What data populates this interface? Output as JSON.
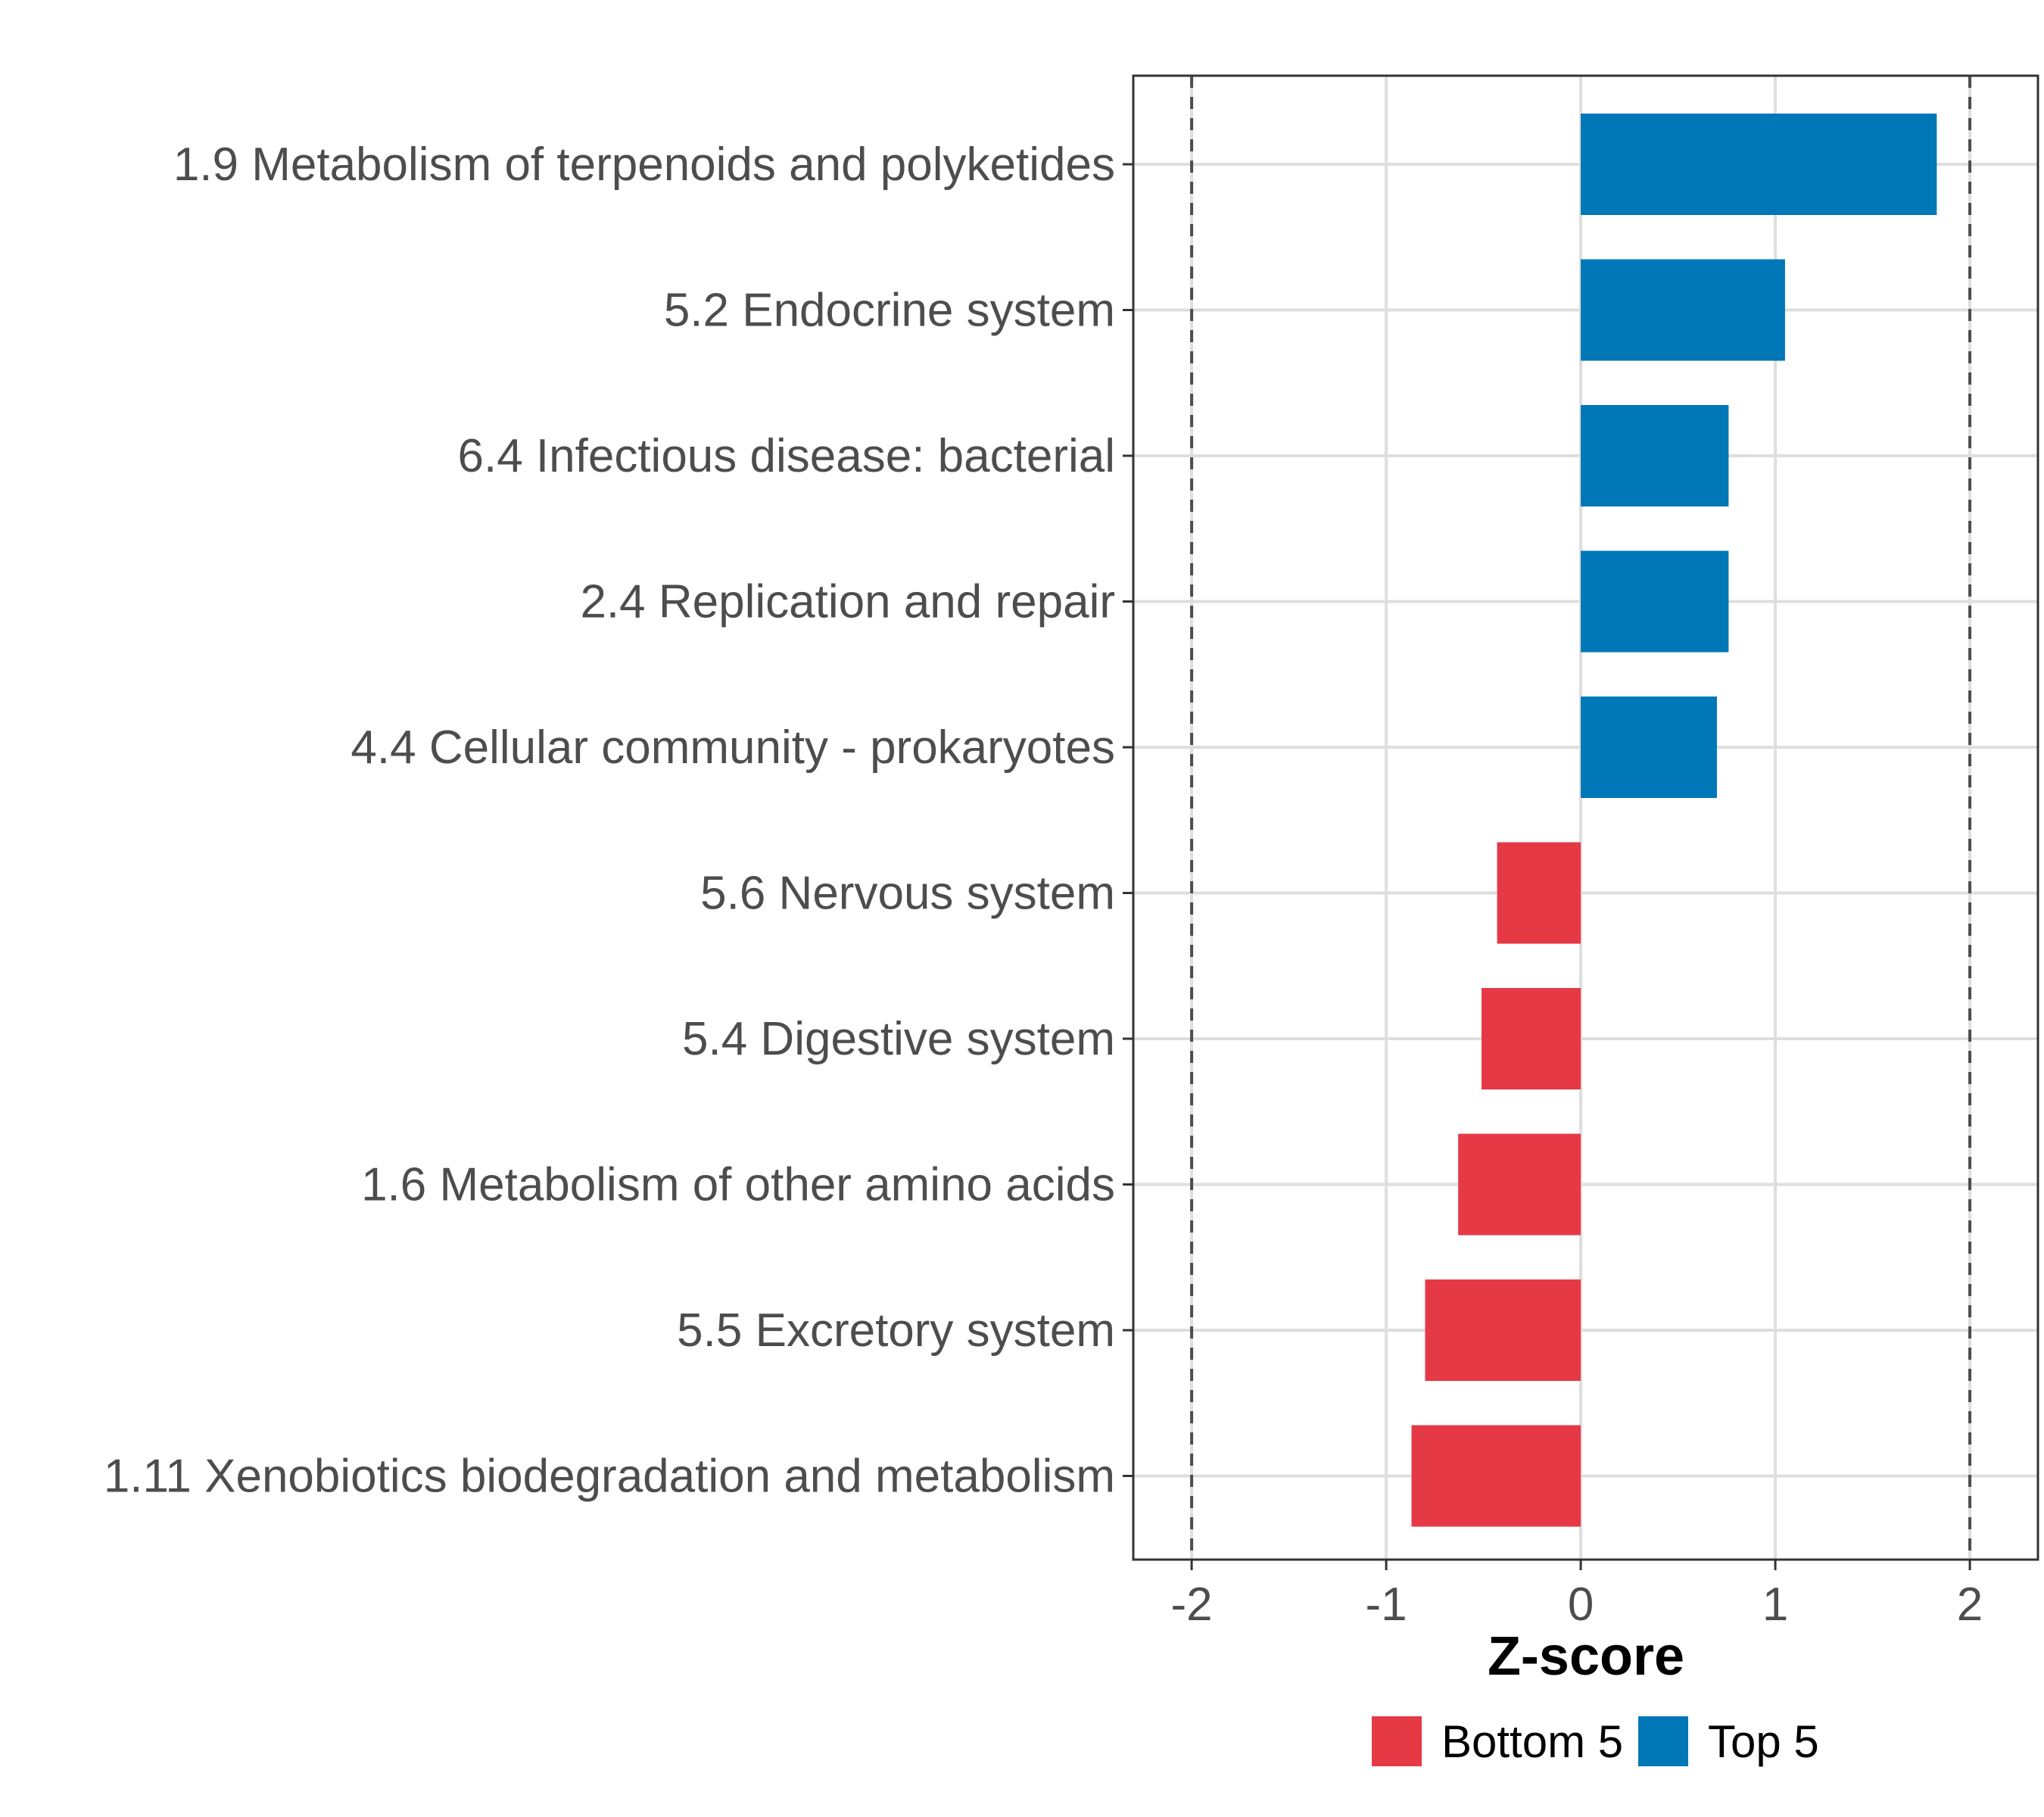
{
  "chart_data": {
    "type": "bar",
    "orientation": "horizontal",
    "title": "",
    "xlabel": "Z-score",
    "ylabel": "",
    "xlim": [
      -2.3,
      2.35
    ],
    "xticks": [
      -2,
      -1,
      0,
      1,
      2
    ],
    "xtick_labels": [
      "-2",
      "-1",
      "0",
      "1",
      "2"
    ],
    "reference_lines": [
      -2,
      2
    ],
    "grid": true,
    "legend_position": "bottom",
    "categories": [
      "1.9 Metabolism of terpenoids and polyketides",
      "5.2 Endocrine system",
      "6.4 Infectious disease: bacterial",
      "2.4 Replication and repair",
      "4.4 Cellular community - prokaryotes",
      "5.6 Nervous system",
      "5.4 Digestive system",
      "1.6 Metabolism of other amino acids",
      "5.5 Excretory system",
      "1.11 Xenobiotics biodegradation and metabolism"
    ],
    "values": [
      1.83,
      1.05,
      0.76,
      0.76,
      0.7,
      -0.43,
      -0.51,
      -0.63,
      -0.8,
      -0.87
    ],
    "groups": [
      "Top 5",
      "Top 5",
      "Top 5",
      "Top 5",
      "Top 5",
      "Bottom 5",
      "Bottom 5",
      "Bottom 5",
      "Bottom 5",
      "Bottom 5"
    ],
    "legend": [
      {
        "name": "Bottom 5",
        "color": "#e63946"
      },
      {
        "name": "Top 5",
        "color": "#0077b6"
      }
    ]
  }
}
